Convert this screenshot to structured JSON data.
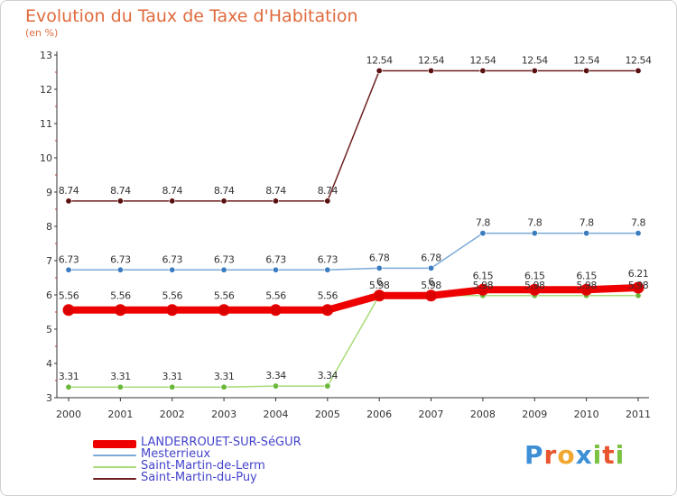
{
  "title": "Evolution du Taux de Taxe d'Habitation",
  "subtitle": "(en %)",
  "brand": {
    "letters": [
      "P",
      "r",
      "o",
      "x",
      "i",
      "t",
      "i"
    ],
    "colors": [
      "#3d8fd6",
      "#e8552f",
      "#f0a830",
      "#3d8fd6",
      "#7cc242",
      "#e8552f",
      "#7cc242"
    ]
  },
  "chart_data": {
    "type": "line",
    "title": "Evolution du Taux de Taxe d'Habitation",
    "ylabel": "(en %)",
    "x": [
      "2000",
      "2001",
      "2002",
      "2003",
      "2004",
      "2005",
      "2006",
      "2007",
      "2008",
      "2009",
      "2010",
      "2011"
    ],
    "ylim": [
      3,
      13
    ],
    "yticks": [
      "3",
      "4",
      "5",
      "6",
      "7",
      "8",
      "9",
      "10",
      "11",
      "12",
      "13"
    ],
    "legend_position": "bottom-left",
    "series": [
      {
        "name": "Saint-Martin-du-Puy",
        "color": "#6e1f1f",
        "dot": "#5a1010",
        "width": 1.5,
        "values": [
          8.74,
          8.74,
          8.74,
          8.74,
          8.74,
          8.74,
          12.54,
          12.54,
          12.54,
          12.54,
          12.54,
          12.54
        ],
        "labels": [
          "8.74",
          "8.74",
          "8.74",
          "8.74",
          "8.74",
          "8.74",
          "12.54",
          "12.54",
          "12.54",
          "12.54",
          "12.54",
          "12.54"
        ]
      },
      {
        "name": "Mesterrieux",
        "color": "#7aaad8",
        "dot": "#3a7cc0",
        "width": 1.5,
        "values": [
          6.73,
          6.73,
          6.73,
          6.73,
          6.73,
          6.73,
          6.78,
          6.78,
          7.8,
          7.8,
          7.8,
          7.8
        ],
        "labels": [
          "6.73",
          "6.73",
          "6.73",
          "6.73",
          "6.73",
          "6.73",
          "6.78",
          "6.78",
          "7.8",
          "7.8",
          "7.8",
          "7.8"
        ]
      },
      {
        "name": "Saint-Martin-de-Lerm",
        "color": "#a8dc78",
        "dot": "#6ab83a",
        "width": 1.5,
        "values": [
          3.31,
          3.31,
          3.31,
          3.31,
          3.34,
          3.34,
          5.98,
          5.98,
          5.98,
          5.98,
          5.98,
          5.98
        ],
        "labels": [
          "3.31",
          "3.31",
          "3.31",
          "3.31",
          "3.34",
          "3.34",
          "5.98",
          "5.98",
          "5.98",
          "5.98",
          "5.98",
          "5.98"
        ]
      },
      {
        "name": "LANDERROUET-SUR-SéGUR",
        "color": "#ee0000",
        "dot": "#dd0000",
        "width": 8,
        "values": [
          5.56,
          5.56,
          5.56,
          5.56,
          5.56,
          5.56,
          5.98,
          5.98,
          6.15,
          6.15,
          6.15,
          6.21
        ],
        "labels": [
          "5.56",
          "5.56",
          "5.56",
          "5.56",
          "5.56",
          "5.56",
          "6",
          "6",
          "6.15",
          "6.15",
          "6.15",
          "6.21"
        ]
      }
    ],
    "legend": [
      {
        "name": "LANDERROUET-SUR-SéGUR",
        "color": "#ee0000",
        "thick": true
      },
      {
        "name": "Mesterrieux",
        "color": "#7aaad8",
        "thick": false
      },
      {
        "name": "Saint-Martin-de-Lerm",
        "color": "#a8dc78",
        "thick": false
      },
      {
        "name": "Saint-Martin-du-Puy",
        "color": "#6e1f1f",
        "thick": false
      }
    ]
  }
}
